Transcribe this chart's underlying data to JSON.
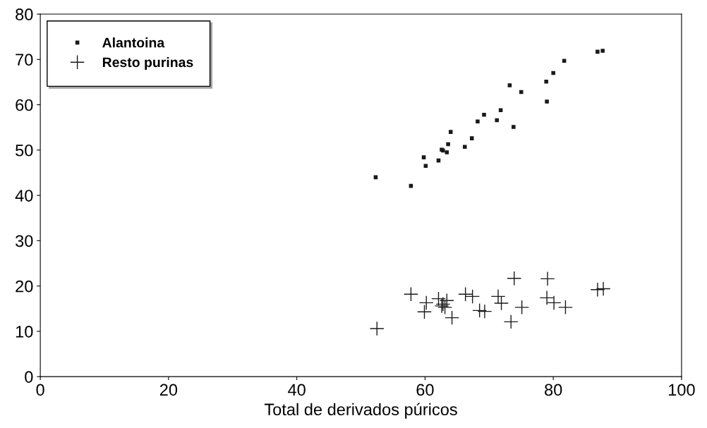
{
  "chart_data": {
    "type": "scatter",
    "xlabel": "Total de derivados púricos",
    "xlim": [
      0,
      100
    ],
    "xticks": [
      0,
      20,
      40,
      60,
      80,
      100
    ],
    "ylim": [
      0,
      80
    ],
    "yticks": [
      0,
      10,
      20,
      30,
      40,
      50,
      60,
      70,
      80
    ],
    "grid": false,
    "legend": "top left",
    "series": [
      {
        "name": "Alantoina",
        "color": "#1a1a1a",
        "marker": "square",
        "x": [
          52.3,
          57.8,
          59.8,
          60.1,
          62.1,
          62.6,
          62.8,
          63.4,
          63.6,
          64.0,
          66.2,
          67.3,
          68.2,
          69.2,
          71.2,
          71.8,
          73.2,
          73.8,
          75.0,
          78.9,
          79.0,
          80.0,
          81.7,
          86.9,
          87.7
        ],
        "values": [
          44.0,
          42.1,
          48.4,
          46.5,
          47.7,
          50.1,
          49.9,
          49.5,
          51.3,
          54.0,
          50.7,
          52.6,
          56.3,
          57.8,
          56.6,
          58.8,
          64.3,
          55.1,
          62.8,
          65.1,
          60.7,
          67.0,
          69.7,
          71.7,
          71.9
        ]
      },
      {
        "name": "Resto purinas",
        "color": "#1a1a1a",
        "marker": "cross",
        "x": [
          52.5,
          57.8,
          60.2,
          59.9,
          62.1,
          63.4,
          62.8,
          63.1,
          62.6,
          64.2,
          66.3,
          67.4,
          68.5,
          69.3,
          71.4,
          71.9,
          73.4,
          73.9,
          75.1,
          79.0,
          79.1,
          80.1,
          81.9,
          86.9,
          87.8
        ],
        "values": [
          10.6,
          18.2,
          16.3,
          14.3,
          17.2,
          16.8,
          16.0,
          15.3,
          15.6,
          13.0,
          18.2,
          17.7,
          14.6,
          14.4,
          17.7,
          16.2,
          12.1,
          21.7,
          15.3,
          17.4,
          21.6,
          16.3,
          15.3,
          19.2,
          19.4
        ]
      }
    ]
  }
}
